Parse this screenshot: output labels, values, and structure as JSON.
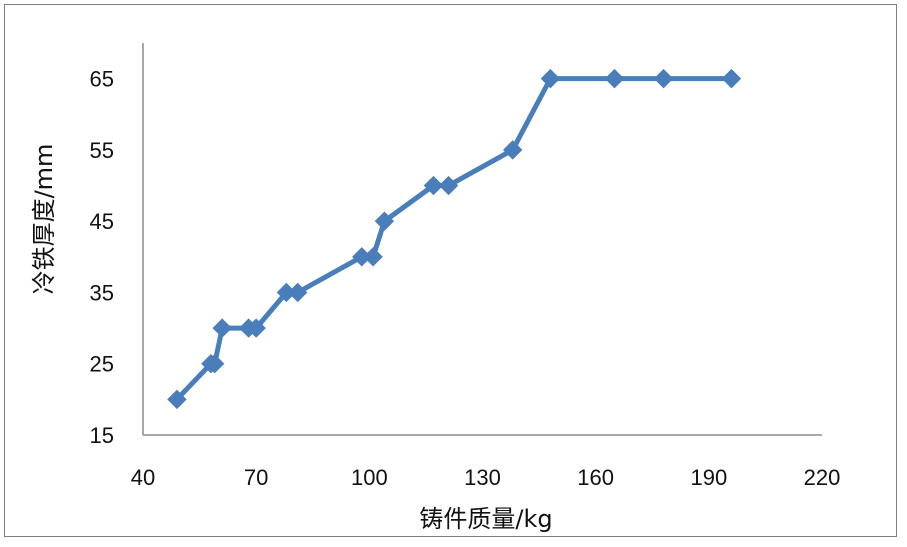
{
  "chart_data": {
    "type": "line",
    "title": "",
    "xlabel": "铸件质量/kg",
    "ylabel": "冷铁厚度/mm",
    "xlim": [
      40,
      220
    ],
    "ylim": [
      15,
      70
    ],
    "xticks": [
      40,
      70,
      100,
      130,
      160,
      190,
      220
    ],
    "yticks": [
      15,
      25,
      35,
      45,
      55,
      65
    ],
    "xtick_labels": [
      "40",
      "70",
      "100",
      "130",
      "160",
      "190",
      "220"
    ],
    "ytick_labels": [
      "15",
      "25",
      "35",
      "45",
      "55",
      "65"
    ],
    "grid": false,
    "legend": "none",
    "series": [
      {
        "marker": "diamond",
        "color": "#4a7ebb",
        "points": [
          [
            49,
            20
          ],
          [
            58,
            25
          ],
          [
            59,
            25
          ],
          [
            61,
            30
          ],
          [
            68,
            30
          ],
          [
            70,
            30
          ],
          [
            78,
            35
          ],
          [
            81,
            35
          ],
          [
            98,
            40
          ],
          [
            101,
            40
          ],
          [
            104,
            45
          ],
          [
            117,
            50
          ],
          [
            121,
            50
          ],
          [
            138,
            55
          ],
          [
            148,
            65
          ],
          [
            165,
            65
          ],
          [
            178,
            65
          ],
          [
            196,
            65
          ]
        ]
      }
    ]
  }
}
